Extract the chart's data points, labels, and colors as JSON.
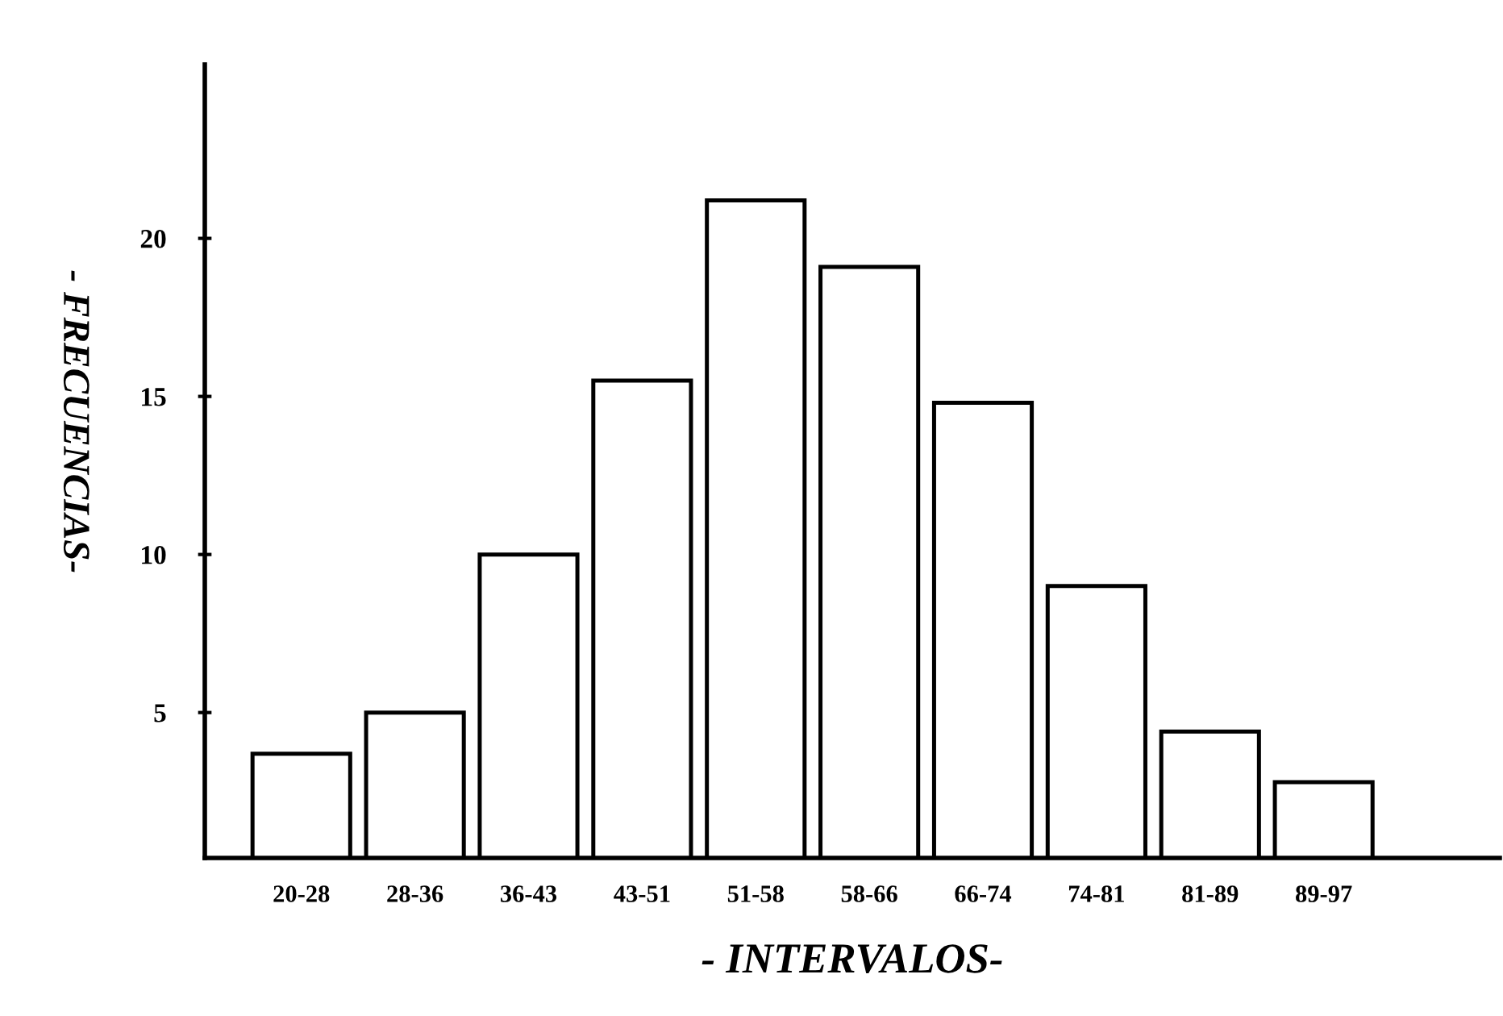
{
  "chart_data": {
    "type": "bar",
    "xlabel": "- INTERVALOS-",
    "ylabel": "- FRECUENCIAS-",
    "categories": [
      "20-28",
      "28-36",
      "36-43",
      "43-51",
      "51-58",
      "58-66",
      "66-74",
      "74-81",
      "81-89",
      "89-97"
    ],
    "values": [
      3.7,
      5,
      10,
      15.5,
      21.2,
      19.1,
      14.8,
      9,
      4.4,
      2.8
    ],
    "color": "#ffffff",
    "ylim": [
      0.4,
      25.5
    ],
    "yticks": [
      5,
      10,
      15,
      20
    ],
    "grid": false,
    "legend": false
  }
}
